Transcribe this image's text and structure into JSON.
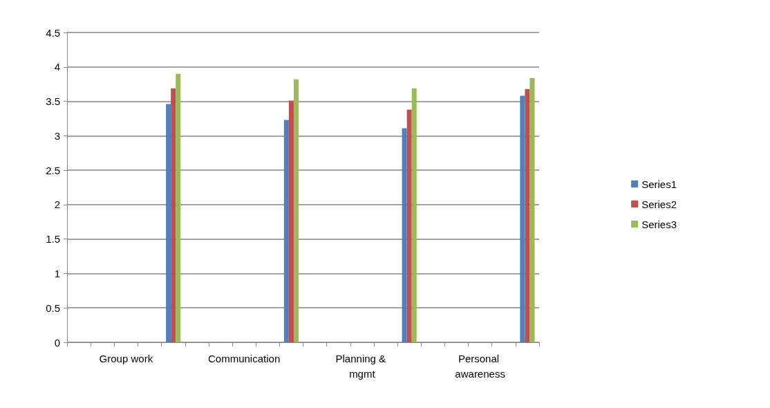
{
  "chart_data": {
    "type": "bar",
    "categories": [
      null,
      null,
      "Group work",
      null,
      null,
      null,
      null,
      "Communication",
      null,
      null,
      null,
      null,
      "Planning & mgmt",
      null,
      null,
      null,
      null,
      "Personal awareness",
      null,
      null
    ],
    "series": [
      {
        "name": "Series1",
        "color": "#4f81bd",
        "values": [
          null,
          null,
          null,
          null,
          3.46,
          null,
          null,
          null,
          null,
          3.23,
          null,
          null,
          null,
          null,
          3.11,
          null,
          null,
          null,
          null,
          3.58
        ]
      },
      {
        "name": "Series2",
        "color": "#c0504d",
        "values": [
          null,
          null,
          null,
          null,
          3.69,
          null,
          null,
          null,
          null,
          3.51,
          null,
          null,
          null,
          null,
          3.38,
          null,
          null,
          null,
          null,
          3.68
        ]
      },
      {
        "name": "Series3",
        "color": "#9bbb59",
        "values": [
          null,
          null,
          null,
          null,
          3.9,
          null,
          null,
          null,
          null,
          3.82,
          null,
          null,
          null,
          null,
          3.69,
          null,
          null,
          null,
          null,
          3.84
        ]
      }
    ],
    "ylim": [
      0,
      4.5
    ],
    "yticks": [
      0,
      0.5,
      1,
      1.5,
      2,
      2.5,
      3,
      3.5,
      4,
      4.5
    ],
    "grid": "y",
    "legend": "right"
  }
}
